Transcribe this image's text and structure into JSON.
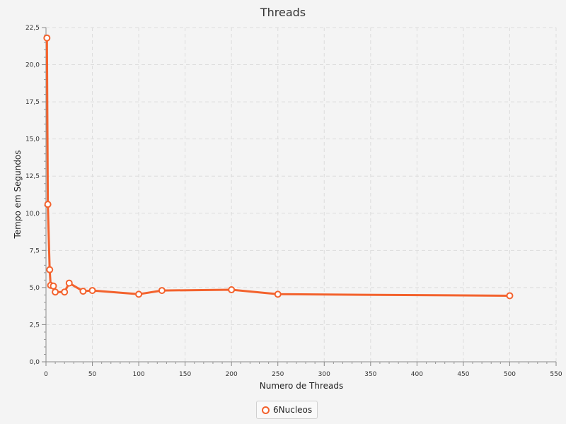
{
  "chart_data": {
    "type": "line",
    "title": "Threads",
    "xlabel": "Numero de Threads",
    "ylabel": "Tempo em Segundos",
    "xlim": [
      0,
      550
    ],
    "ylim": [
      0,
      22.5
    ],
    "x_ticks": [
      "0",
      "50",
      "100",
      "150",
      "200",
      "250",
      "300",
      "350",
      "400",
      "450",
      "500",
      "550"
    ],
    "y_ticks": [
      "0,0",
      "2,5",
      "5,0",
      "7,5",
      "10,0",
      "12,5",
      "15,0",
      "17,5",
      "20,0",
      "22,5"
    ],
    "grid": true,
    "legend_position": "bottom",
    "series": [
      {
        "name": "6Nucleos",
        "color": "#f3622d",
        "x": [
          1,
          2,
          4,
          5,
          8,
          10,
          20,
          25,
          40,
          50,
          100,
          125,
          200,
          250,
          500
        ],
        "y": [
          21.8,
          10.6,
          6.2,
          5.15,
          5.1,
          4.7,
          4.7,
          5.3,
          4.75,
          4.8,
          4.55,
          4.8,
          4.85,
          4.55,
          4.45
        ]
      }
    ]
  }
}
